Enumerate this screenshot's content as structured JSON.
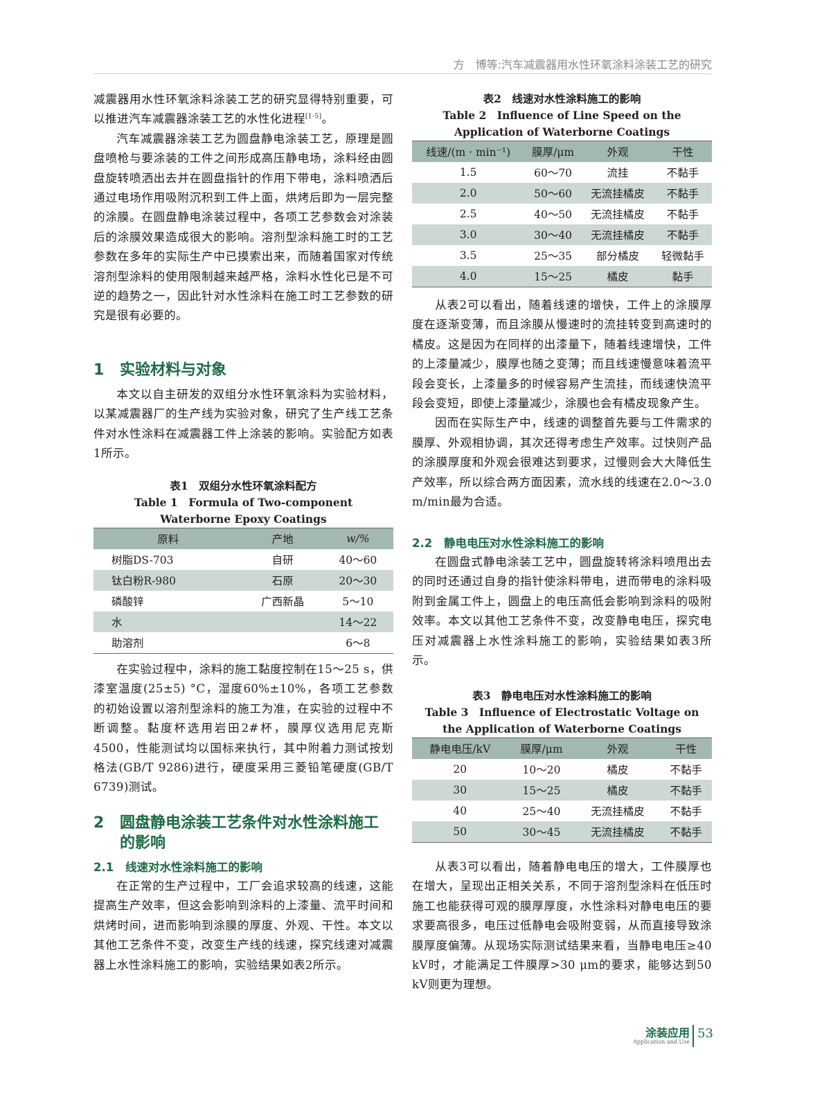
{
  "header": {
    "running_title": "方　博等:汽车减震器用水性环氧涂料涂装工艺的研究"
  },
  "left": {
    "para1": "减震器用水性环氧涂料涂装工艺的研究显得特别重要，可以推进汽车减震器涂装工艺的水性化进程",
    "para1_cite": "[1-5]",
    "para1_end": "。",
    "para2": "汽车减震器涂装工艺为圆盘静电涂装工艺，原理是圆盘喷枪与要涂装的工件之间形成高压静电场，涂料经由圆盘旋转喷洒出去并在圆盘指针的作用下带电，涂料喷洒后通过电场作用吸附沉积到工件上面，烘烤后即为一层完整的涂膜。在圆盘静电涂装过程中，各项工艺参数会对涂装后的涂膜效果造成很大的影响。溶剂型涂料施工时的工艺参数在多年的实际生产中已摸索出来，而随着国家对传统溶剂型涂料的使用限制越来越严格，涂料水性化已是不可逆的趋势之一，因此针对水性涂料在施工时工艺参数的研究是很有必要的。",
    "sec1_num": "1",
    "sec1_title": "实验材料与对象",
    "para3": "本文以自主研发的双组分水性环氧涂料为实验材料，以某减震器厂的生产线为实验对象，研究了生产线工艺条件对水性涂料在减震器工件上涂装的影响。实验配方如表1所示。",
    "table1": {
      "caption_cn": "表1　双组分水性环氧涂料配方",
      "caption_en": "Table 1　Formula of Two-component Waterborne Epoxy Coatings",
      "headers": [
        "原料",
        "产地",
        "w/%"
      ],
      "rows": [
        [
          "树脂DS-703",
          "自研",
          "40～60"
        ],
        [
          "钛白粉R-980",
          "石原",
          "20～30"
        ],
        [
          "磷酸锌",
          "广西新晶",
          "5～10"
        ],
        [
          "水",
          "",
          "14～22"
        ],
        [
          "助溶剂",
          "",
          "6～8"
        ]
      ]
    },
    "para4": "在实验过程中，涂料的施工黏度控制在15～25 s，供漆室温度(25±5) °C，湿度60%±10%，各项工艺参数的初始设置以溶剂型涂料的施工为准，在实验的过程中不断调整。黏度杯选用岩田2#杯，膜厚仪选用尼克斯4500，性能测试均以国标来执行，其中附着力测试按划格法(GB/T 9286)进行，硬度采用三菱铅笔硬度(GB/T 6739)测试。",
    "sec2_num": "2",
    "sec2_title": "圆盘静电涂装工艺条件对水性涂料施工的影响",
    "sec21_num": "2.1",
    "sec21_title": "线速对水性涂料施工的影响",
    "para5": "在正常的生产过程中，工厂会追求较高的线速，这能提高生产效率，但这会影响到涂料的上漆量、流平时间和烘烤时间，进而影响到涂膜的厚度、外观、干性。本文以其他工艺条件不变，改变生产线的线速，探究线速对减震器上水性涂料施工的影响，实验结果如表2所示。"
  },
  "right": {
    "table2": {
      "caption_cn": "表2　线速对水性涂料施工的影响",
      "caption_en": "Table 2　Influence of Line Speed on the Application of Waterborne Coatings",
      "headers": [
        "线速/(m · min⁻¹)",
        "膜厚/μm",
        "外观",
        "干性"
      ],
      "rows": [
        [
          "1.5",
          "60～70",
          "流挂",
          "不黏手"
        ],
        [
          "2.0",
          "50～60",
          "无流挂橘皮",
          "不黏手"
        ],
        [
          "2.5",
          "40～50",
          "无流挂橘皮",
          "不黏手"
        ],
        [
          "3.0",
          "30～40",
          "无流挂橘皮",
          "不黏手"
        ],
        [
          "3.5",
          "25～35",
          "部分橘皮",
          "轻微黏手"
        ],
        [
          "4.0",
          "15～25",
          "橘皮",
          "黏手"
        ]
      ]
    },
    "para1": "从表2可以看出，随着线速的增快，工件上的涂膜厚度在逐渐变薄，而且涂膜从慢速时的流挂转变到高速时的橘皮。这是因为在同样的出漆量下，随着线速增快，工件的上漆量减少，膜厚也随之变薄；而且线速慢意味着流平段会变长，上漆量多的时候容易产生流挂，而线速快流平段会变短，即使上漆量减少，涂膜也会有橘皮现象产生。",
    "para2": "因而在实际生产中，线速的调整首先要与工件需求的膜厚、外观相协调，其次还得考虑生产效率。过快则产品的涂膜厚度和外观会很难达到要求，过慢则会大大降低生产效率，所以综合两方面因素，流水线的线速在2.0～3.0 m/min最为合适。",
    "sec22_num": "2.2",
    "sec22_title": "静电电压对水性涂料施工的影响",
    "para3": "在圆盘式静电涂装工艺中，圆盘旋转将涂料喷甩出去的同时还通过自身的指针使涂料带电，进而带电的涂料吸附到金属工件上，圆盘上的电压高低会影响到涂料的吸附效率。本文以其他工艺条件不变，改变静电电压，探究电压对减震器上水性涂料施工的影响，实验结果如表3所示。",
    "table3": {
      "caption_cn": "表3　静电电压对水性涂料施工的影响",
      "caption_en": "Table 3　Influence of Electrostatic Voltage on the Application of Waterborne Coatings",
      "headers": [
        "静电电压/kV",
        "膜厚/μm",
        "外观",
        "干性"
      ],
      "rows": [
        [
          "20",
          "10～20",
          "橘皮",
          "不黏手"
        ],
        [
          "30",
          "15～25",
          "橘皮",
          "不黏手"
        ],
        [
          "40",
          "25～40",
          "无流挂橘皮",
          "不黏手"
        ],
        [
          "50",
          "30～45",
          "无流挂橘皮",
          "不黏手"
        ]
      ]
    },
    "para4": "从表3可以看出，随着静电电压的增大，工件膜厚也在增大，呈现出正相关关系，不同于溶剂型涂料在低压时施工也能获得可观的膜厚厚度，水性涂料对静电电压的要求要高很多，电压过低静电会吸附变弱，从而直接导致涂膜厚度偏薄。从现场实际测试结果来看，当静电电压≥40 kV时，才能满足工件膜厚>30 μm的要求，能够达到50 kV则更为理想。"
  },
  "footer": {
    "journal_cn": "涂装应用",
    "journal_en": "Application and Use",
    "page": "53"
  },
  "colors": {
    "heading_green": "#1d6b45",
    "table_header": "#a3b8b1",
    "table_shade": "#cdd8d4"
  }
}
